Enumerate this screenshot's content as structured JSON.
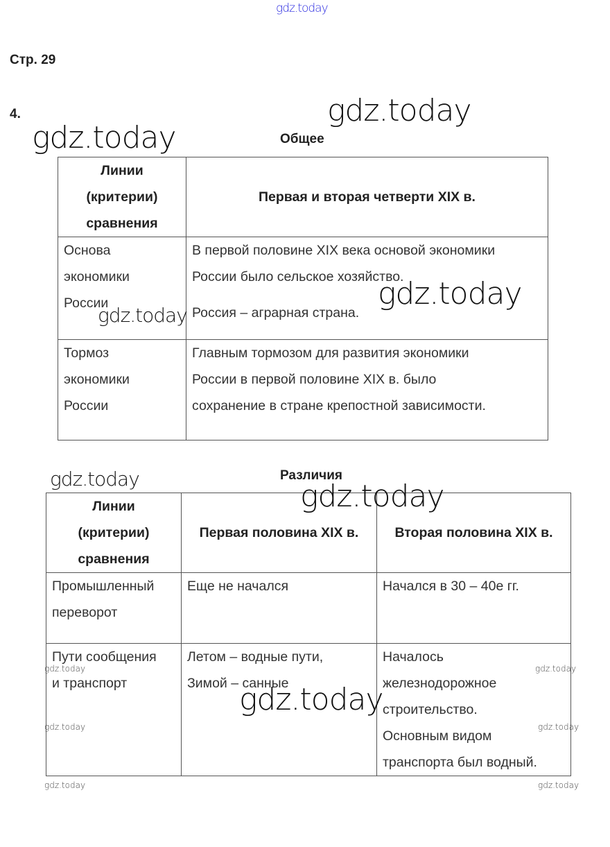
{
  "watermark": "gdz.today",
  "watermark_color": "#2a2ae0",
  "page_label": "Стр. 29",
  "task_number": "4.",
  "common": {
    "title": "Общее",
    "header": [
      "Линии (критерии) сравнения",
      "Первая и вторая четверти XIX в."
    ],
    "header_criteria_lines": [
      "Линии",
      "(критерии)",
      "сравнения"
    ],
    "rows": [
      {
        "criterion_lines": [
          "Основа",
          "экономики",
          "России"
        ],
        "text_lines": [
          "В первой половине XIX века основой экономики",
          "России было сельское хозяйство.",
          "Россия – аграрная страна."
        ]
      },
      {
        "criterion_lines": [
          "Тормоз",
          "экономики",
          "России"
        ],
        "text_lines": [
          "Главным тормозом для развития экономики",
          "России в первой половине XIX в. было",
          "сохранение в стране крепостной зависимости."
        ]
      }
    ]
  },
  "differences": {
    "title": "Различия",
    "header_criteria_lines": [
      "Линии",
      "(критерии)",
      "сравнения"
    ],
    "header": [
      "Первая половина XIX в.",
      "Вторая половина XIX в."
    ],
    "rows": [
      {
        "criterion_lines": [
          "Промышленный",
          "переворот"
        ],
        "first_lines": [
          "Еще не начался"
        ],
        "second_lines": [
          "Начался в 30 – 40е гг."
        ]
      },
      {
        "criterion_lines": [
          "Пути сообщения",
          "и транспорт"
        ],
        "first_lines": [
          "Летом – водные пути,",
          "Зимой – санные"
        ],
        "second_lines": [
          "Началось",
          "железнодорожное",
          "строительство.",
          "Основным видом",
          "транспорта был водный."
        ]
      }
    ]
  }
}
